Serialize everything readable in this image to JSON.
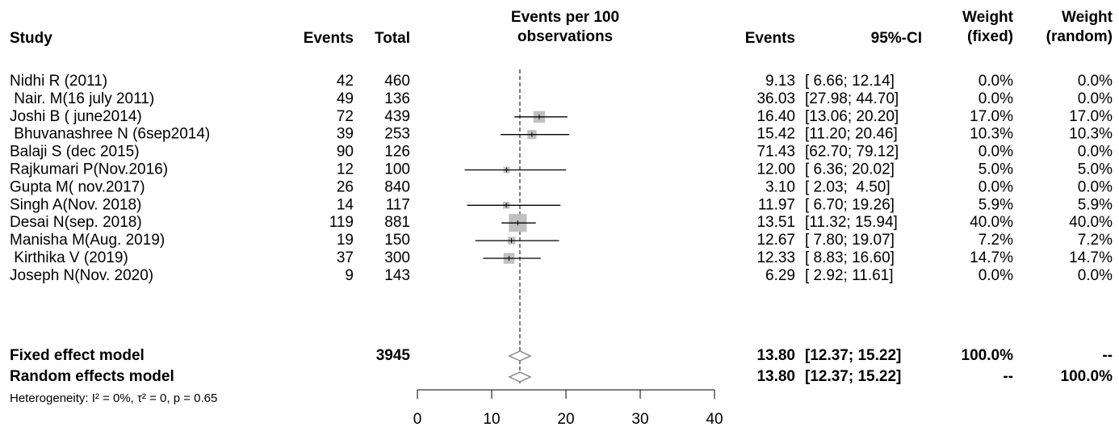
{
  "chart_data": {
    "type": "forest",
    "columns": {
      "study": "Study",
      "events": "Events",
      "total": "Total",
      "plot": [
        "Events per 100",
        "observations"
      ],
      "estimate": "Events",
      "ci": "95%-CI",
      "weight_fixed": [
        "Weight",
        "(fixed)"
      ],
      "weight_random": [
        "Weight",
        "(random)"
      ]
    },
    "studies": [
      "Nidhi R (2011)",
      " Nair. M(16 july 2011)",
      "Joshi B ( june2014)",
      " Bhuvanashree N (6sep2014)",
      "Balaji S (dec 2015)",
      "Rajkumari P(Nov.2016)",
      "Gupta M( nov.2017)",
      "Singh A(Nov. 2018)",
      "Desai N(sep. 2018)",
      "Manisha M(Aug. 2019)",
      " Kirthika V (2019)",
      "Joseph N(Nov. 2020)"
    ],
    "events": [
      42,
      49,
      72,
      39,
      90,
      12,
      26,
      14,
      119,
      19,
      37,
      9
    ],
    "totals": [
      460,
      136,
      439,
      253,
      126,
      100,
      840,
      117,
      881,
      150,
      300,
      143
    ],
    "estimates": [
      9.13,
      36.03,
      16.4,
      15.42,
      71.43,
      12,
      3.1,
      11.97,
      13.51,
      12.67,
      12.33,
      6.29
    ],
    "estimate_labels": [
      "9.13",
      "36.03",
      "16.40",
      "15.42",
      "71.43",
      "12.00",
      "3.10",
      "11.97",
      "13.51",
      "12.67",
      "12.33",
      "6.29"
    ],
    "ci_lower": [
      6.66,
      27.98,
      13.06,
      11.2,
      62.7,
      6.36,
      2.03,
      6.7,
      11.32,
      7.8,
      8.83,
      2.92
    ],
    "ci_upper": [
      12.14,
      44.7,
      20.2,
      20.46,
      79.12,
      20.02,
      4.5,
      19.26,
      15.94,
      19.07,
      16.6,
      11.61
    ],
    "ci_labels": [
      "[ 6.66; 12.14]",
      "[27.98; 44.70]",
      "[13.06; 20.20]",
      "[11.20; 20.46]",
      "[62.70; 79.12]",
      "[ 6.36; 20.02]",
      "[ 2.03;  4.50]",
      "[ 6.70; 19.26]",
      "[11.32; 15.94]",
      "[ 7.80; 19.07]",
      "[ 8.83; 16.60]",
      "[ 2.92; 11.61]"
    ],
    "weights_fixed": [
      0,
      0,
      17,
      10.3,
      0,
      5,
      0,
      5.9,
      40,
      7.2,
      14.7,
      0
    ],
    "weight_fixed_labels": [
      "0.0%",
      "0.0%",
      "17.0%",
      "10.3%",
      "0.0%",
      "5.0%",
      "0.0%",
      "5.9%",
      "40.0%",
      "7.2%",
      "14.7%",
      "0.0%"
    ],
    "weights_random": [
      0,
      0,
      17,
      10.3,
      0,
      5,
      0,
      5.9,
      40,
      7.2,
      14.7,
      0
    ],
    "weight_random_labels": [
      "0.0%",
      "0.0%",
      "17.0%",
      "10.3%",
      "0.0%",
      "5.0%",
      "0.0%",
      "5.9%",
      "40.0%",
      "7.2%",
      "14.7%",
      "0.0%"
    ],
    "summaries": [
      {
        "name": "Fixed effect model",
        "total": 3945,
        "estimate": 13.8,
        "estimate_label": "13.80",
        "lower": 12.37,
        "upper": 15.22,
        "ci_label": "[12.37; 15.22]",
        "weight_fixed_label": "100.0%",
        "weight_random_label": "--"
      },
      {
        "name": "Random effects model",
        "estimate": 13.8,
        "estimate_label": "13.80",
        "lower": 12.37,
        "upper": 15.22,
        "ci_label": "[12.37; 15.22]",
        "weight_fixed_label": "--",
        "weight_random_label": "100.0%"
      }
    ],
    "heterogeneity": "Heterogeneity: I² = 0%, τ² = 0, p = 0.65",
    "xlim": [
      0,
      40
    ],
    "xticks": [
      0,
      10,
      20,
      30,
      40
    ]
  }
}
